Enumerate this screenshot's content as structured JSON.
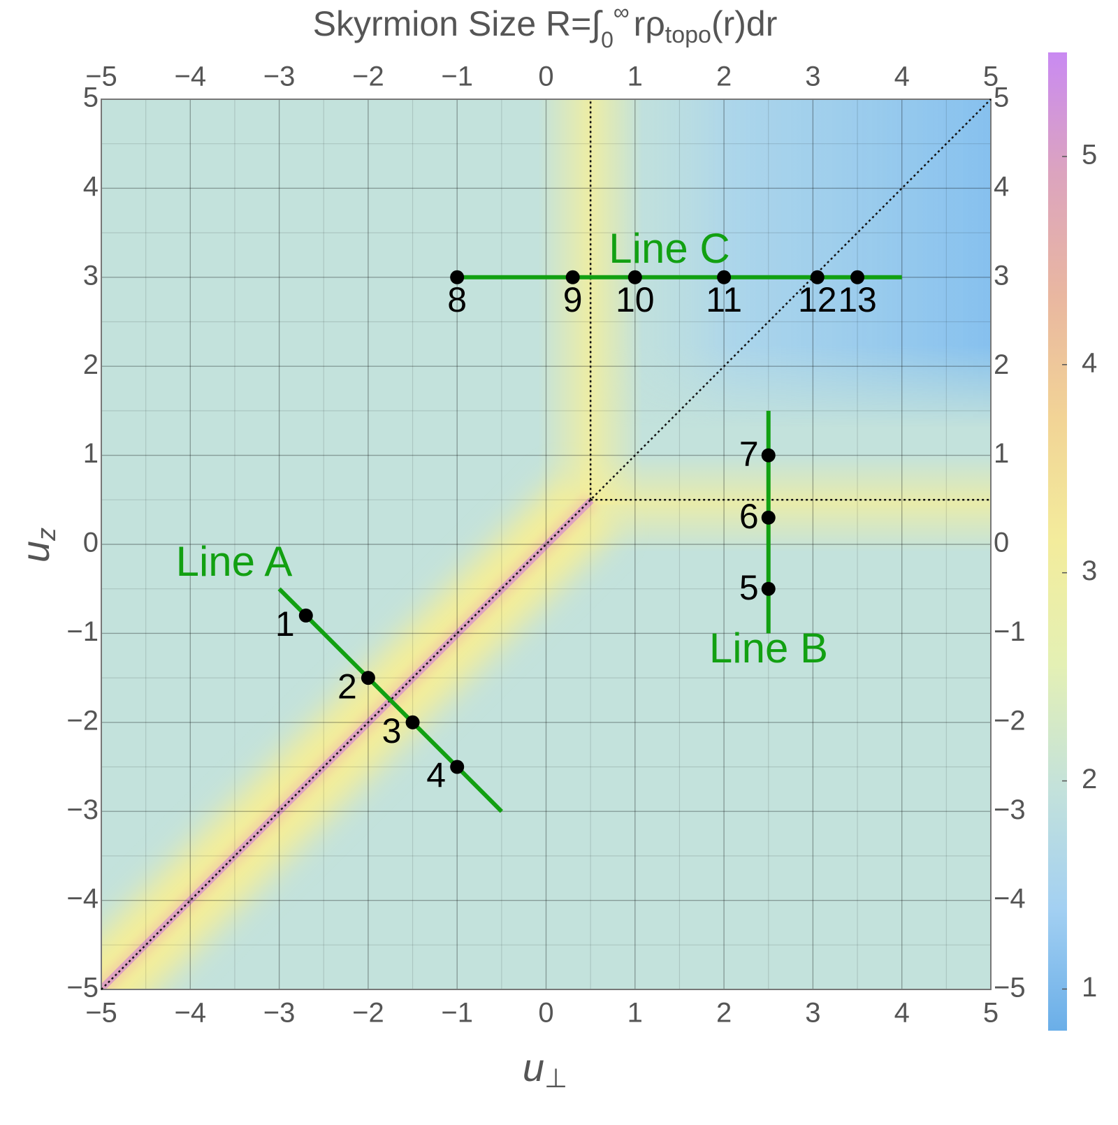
{
  "chart_data": {
    "type": "density",
    "title": {
      "main": "Skyrmion Size R=∫",
      "sub": "0",
      "sup": "∞",
      "mid": "rρ",
      "sub2": "topo",
      "end": "(r)dr"
    },
    "xlabel": {
      "base": "u",
      "sub": "⊥"
    },
    "ylabel": {
      "base": "u",
      "sub": "z"
    },
    "xlim": [
      -5,
      5
    ],
    "ylim": [
      -5,
      5
    ],
    "xticks": [
      {
        "value": -5,
        "label": "−5"
      },
      {
        "value": -4,
        "label": "−4"
      },
      {
        "value": -3,
        "label": "−3"
      },
      {
        "value": -2,
        "label": "−2"
      },
      {
        "value": -1,
        "label": "−1"
      },
      0,
      1,
      2,
      3,
      4,
      5
    ],
    "yticks": [
      {
        "value": -5,
        "label": "−5"
      },
      {
        "value": -4,
        "label": "−4"
      },
      {
        "value": -3,
        "label": "−3"
      },
      {
        "value": -2,
        "label": "−2"
      },
      {
        "value": -1,
        "label": "−1"
      },
      0,
      1,
      2,
      3,
      4,
      5
    ],
    "grid": true,
    "minor_grid_step": 0.5,
    "colorbar": {
      "lim": [
        0.8,
        5.5
      ],
      "ticks": [
        1,
        2,
        3,
        4,
        5
      ],
      "colors": [
        "#6aaee8",
        "#a3d0f2",
        "#c4e2da",
        "#e4f0b4",
        "#f3ec9c",
        "#f2d496",
        "#e9b7a0",
        "#dca4be",
        "#c98af2"
      ]
    },
    "guides": [
      {
        "x": [
          -5,
          5
        ],
        "y": [
          -5,
          5
        ]
      },
      {
        "x": [
          0.5,
          0.5
        ],
        "y": [
          0.5,
          5
        ]
      },
      {
        "x": [
          0.5,
          5
        ],
        "y": [
          0.5,
          0.5
        ]
      }
    ],
    "lines": [
      {
        "name": "Line A",
        "color": "#12a012",
        "segment": {
          "x": [
            -3,
            -0.5
          ],
          "y": [
            -0.5,
            -3
          ]
        },
        "points": [
          {
            "label": "1",
            "x": -2.7,
            "y": -0.8
          },
          {
            "label": "2",
            "x": -2,
            "y": -1.5
          },
          {
            "label": "3",
            "x": -1.5,
            "y": -2
          },
          {
            "label": "4",
            "x": -1,
            "y": -2.5
          }
        ]
      },
      {
        "name": "Line B",
        "color": "#12a012",
        "segment": {
          "x": [
            2.5,
            2.5
          ],
          "y": [
            -1,
            1.5
          ]
        },
        "points": [
          {
            "label": "5",
            "x": 2.5,
            "y": -0.5
          },
          {
            "label": "6",
            "x": 2.5,
            "y": 0.3
          },
          {
            "label": "7",
            "x": 2.5,
            "y": 1
          }
        ]
      },
      {
        "name": "Line C",
        "color": "#12a012",
        "segment": {
          "x": [
            -1,
            4
          ],
          "y": [
            3,
            3
          ]
        },
        "points": [
          {
            "label": "8",
            "x": -1,
            "y": 3
          },
          {
            "label": "9",
            "x": 0.3,
            "y": 3
          },
          {
            "label": "10",
            "x": 1,
            "y": 3
          },
          {
            "label": "11",
            "x": 2,
            "y": 3
          },
          {
            "label": "12",
            "x": 3.05,
            "y": 3
          },
          {
            "label": "13",
            "x": 3.5,
            "y": 3
          }
        ]
      }
    ]
  }
}
